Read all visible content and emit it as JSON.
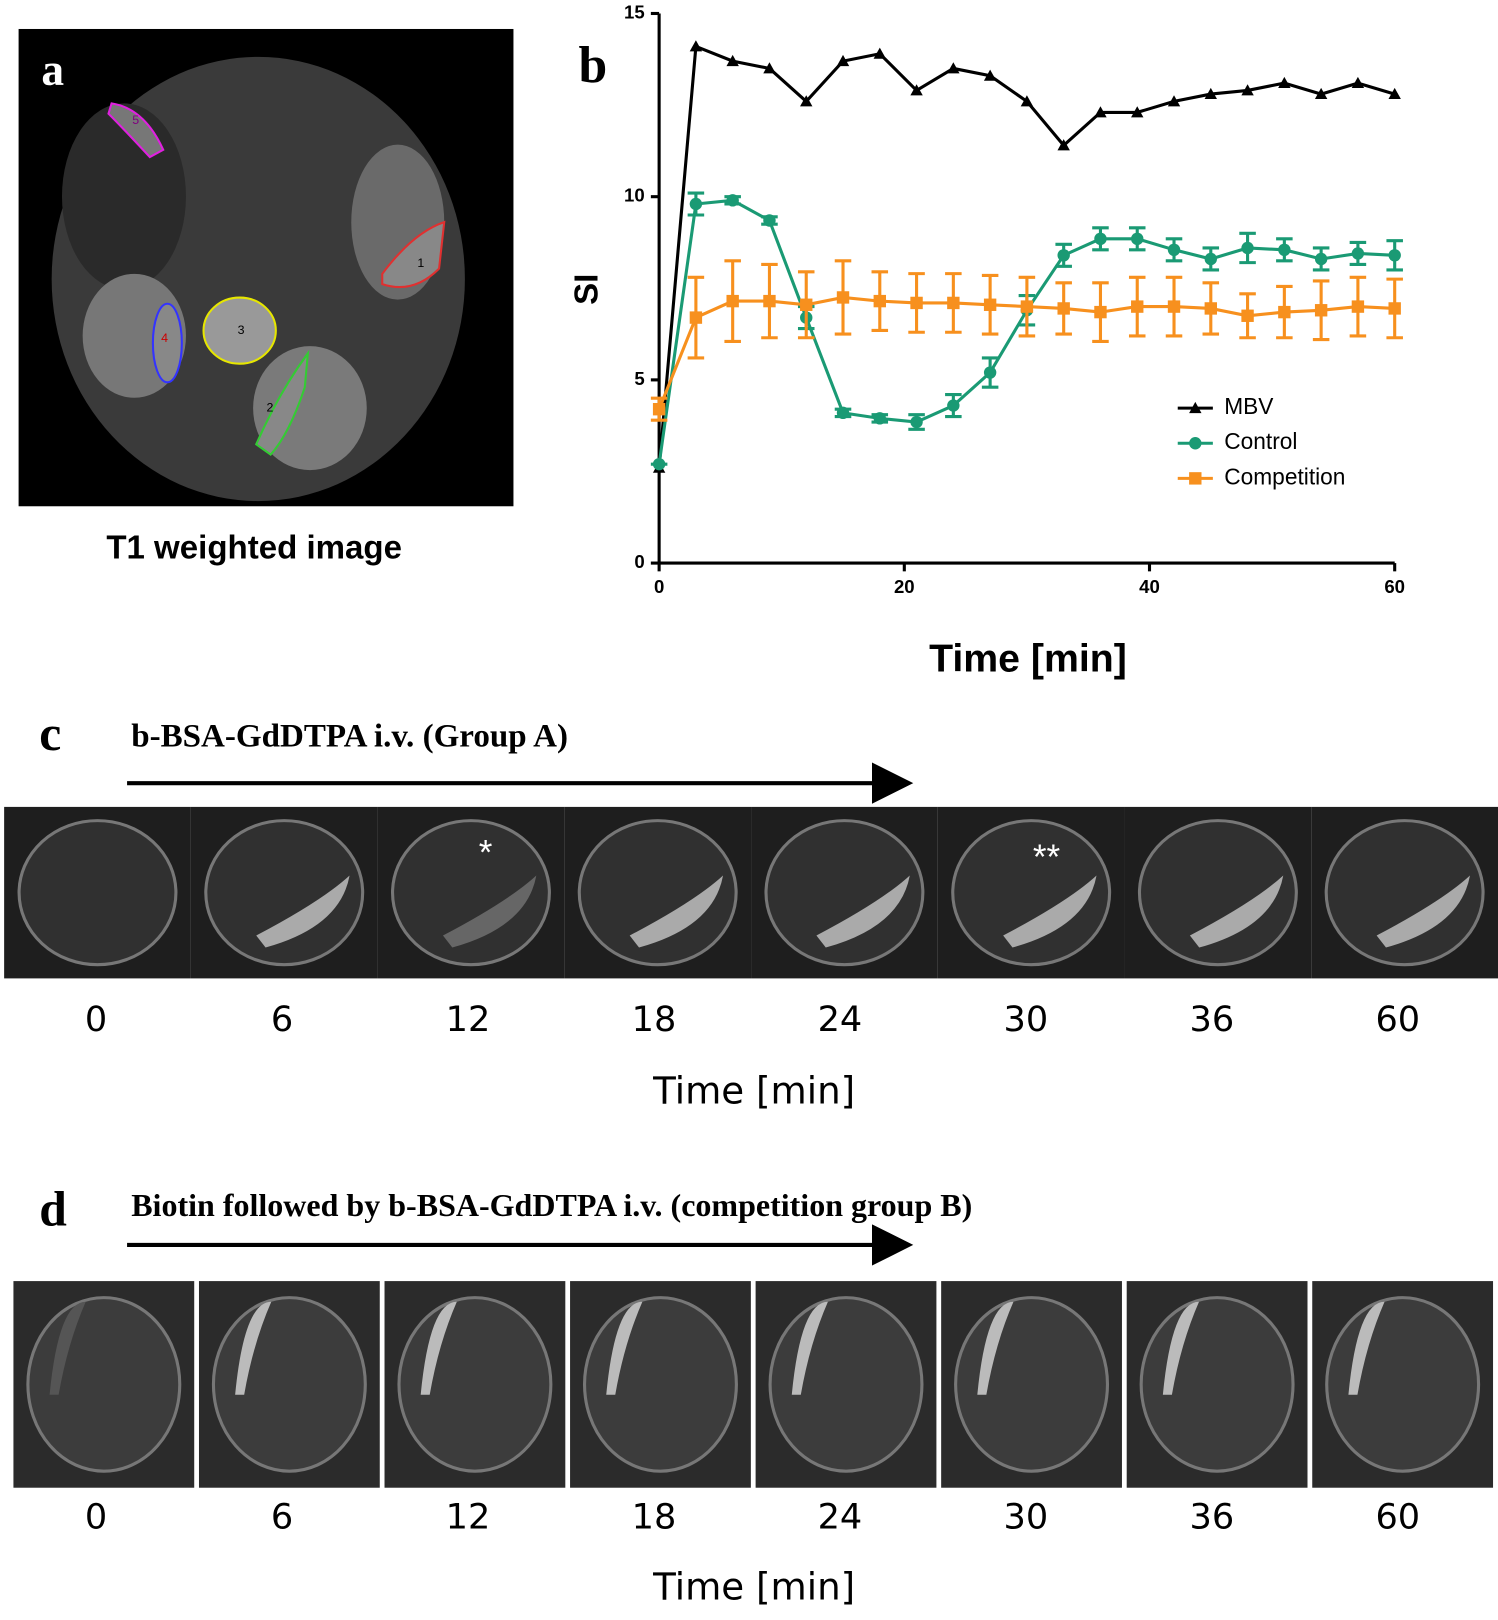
{
  "panel_a": {
    "letter": "a",
    "caption": "T1 weighted  image",
    "roi_labels": [
      "1",
      "2",
      "3",
      "4",
      "5"
    ]
  },
  "chart_data": {
    "type": "line",
    "letter": "b",
    "y_label": "SI",
    "x_label": "Time [min]",
    "x": [
      0,
      3,
      6,
      9,
      12,
      15,
      18,
      21,
      24,
      27,
      30,
      33,
      36,
      39,
      42,
      45,
      48,
      51,
      54,
      57,
      60
    ],
    "xlim": [
      0,
      60
    ],
    "xticks": [
      0,
      20,
      40,
      60
    ],
    "ylim": [
      0,
      15
    ],
    "yticks": [
      0,
      5,
      10,
      15
    ],
    "legend": "right",
    "series": [
      {
        "name": "MBV",
        "color": "#000000",
        "marker": "triangle",
        "values": [
          2.6,
          14.1,
          13.7,
          13.5,
          12.6,
          13.7,
          13.9,
          12.9,
          13.5,
          13.3,
          12.6,
          11.4,
          12.3,
          12.3,
          12.6,
          12.8,
          12.9,
          13.1,
          12.8,
          13.1,
          12.8
        ]
      },
      {
        "name": "Control",
        "color": "#1a9a74",
        "marker": "circle",
        "values": [
          2.7,
          9.8,
          9.9,
          9.35,
          6.7,
          4.1,
          3.95,
          3.85,
          4.3,
          5.2,
          6.9,
          8.4,
          8.85,
          8.85,
          8.55,
          8.3,
          8.6,
          8.55,
          8.3,
          8.45,
          8.4
        ],
        "errors": [
          0,
          0.3,
          0.1,
          0.1,
          0.3,
          0.1,
          0.1,
          0.2,
          0.3,
          0.4,
          0.4,
          0.3,
          0.3,
          0.3,
          0.3,
          0.3,
          0.4,
          0.3,
          0.3,
          0.3,
          0.4
        ]
      },
      {
        "name": "Competition",
        "color": "#f7901e",
        "marker": "square",
        "values": [
          4.2,
          6.7,
          7.15,
          7.15,
          7.05,
          7.25,
          7.15,
          7.1,
          7.1,
          7.05,
          7.0,
          6.95,
          6.85,
          7.0,
          7.0,
          6.95,
          6.75,
          6.85,
          6.9,
          7.0,
          6.95
        ],
        "errors": [
          0.3,
          1.1,
          1.1,
          1.0,
          0.9,
          1.0,
          0.8,
          0.8,
          0.8,
          0.8,
          0.8,
          0.7,
          0.8,
          0.8,
          0.8,
          0.7,
          0.6,
          0.7,
          0.8,
          0.8,
          0.8
        ]
      }
    ]
  },
  "panel_c": {
    "letter": "c",
    "title": "b-BSA-GdDTPA  i.v. (Group A)",
    "marks": [
      "*",
      "**"
    ],
    "times": [
      0,
      6,
      12,
      18,
      24,
      30,
      36,
      60
    ],
    "x_label": "Time [min]"
  },
  "panel_d": {
    "letter": "d",
    "title": "Biotin followed by  b-BSA-GdDTPA  i.v.  (competition group B)",
    "times": [
      0,
      6,
      12,
      18,
      24,
      30,
      36,
      60
    ],
    "x_label": "Time [min]"
  }
}
